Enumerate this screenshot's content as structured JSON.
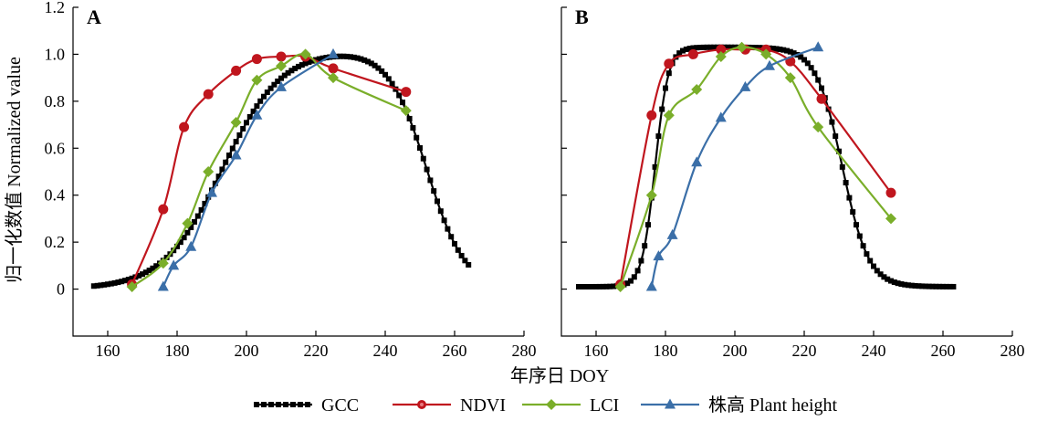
{
  "figure": {
    "y_axis_title": "归一化数值 Normalized value",
    "x_axis_title": "年序日 DOY"
  },
  "legend": [
    {
      "label": "GCC",
      "color": "#000000",
      "marker": "square-dot"
    },
    {
      "label": "NDVI",
      "color": "#c0161e",
      "marker": "circle"
    },
    {
      "label": "LCI",
      "color": "#7aae2a",
      "marker": "diamond"
    },
    {
      "label": "株高 Plant height",
      "color": "#3b6fa8",
      "marker": "triangle"
    }
  ],
  "chart_data": [
    {
      "type": "line",
      "panel": "A",
      "xlim": [
        150,
        280
      ],
      "ylim": [
        -0.2,
        1.2
      ],
      "x_ticks": [
        160,
        180,
        200,
        220,
        240,
        260,
        280
      ],
      "y_ticks": [
        0,
        0.2,
        0.4,
        0.6,
        0.8,
        1.0,
        1.2
      ],
      "y_tick_labels": [
        "0",
        "0.2",
        "0.4",
        "0.6",
        "0.8",
        "1.0",
        "1.2"
      ],
      "gcc_curve": {
        "start": 156,
        "end": 264,
        "rise_mid": 193,
        "rise_scale": 8.5,
        "fall_mid": 252,
        "fall_scale": 5.5,
        "min": 0.0,
        "max": 1.02
      },
      "series": [
        {
          "name": "NDVI",
          "x": [
            167,
            176,
            182,
            189,
            197,
            203,
            210,
            217,
            225,
            246
          ],
          "y": [
            0.02,
            0.34,
            0.69,
            0.83,
            0.93,
            0.98,
            0.99,
            0.99,
            0.94,
            0.84
          ]
        },
        {
          "name": "LCI",
          "x": [
            167,
            176,
            183,
            189,
            197,
            203,
            210,
            217,
            225,
            246
          ],
          "y": [
            0.01,
            0.11,
            0.28,
            0.5,
            0.71,
            0.89,
            0.95,
            1.0,
            0.9,
            0.76
          ]
        },
        {
          "name": "株高 Plant height",
          "x": [
            176,
            179,
            184,
            190,
            197,
            203,
            210,
            225
          ],
          "y": [
            0.01,
            0.1,
            0.18,
            0.41,
            0.57,
            0.74,
            0.86,
            1.0
          ]
        }
      ]
    },
    {
      "type": "line",
      "panel": "B",
      "xlim": [
        150,
        280
      ],
      "ylim": [
        -0.2,
        1.2
      ],
      "x_ticks": [
        160,
        180,
        200,
        220,
        240,
        260,
        280
      ],
      "y_ticks": [
        0,
        0.2,
        0.4,
        0.6,
        0.8,
        1.0,
        1.2
      ],
      "gcc_curve": {
        "start": 155,
        "end": 263,
        "rise_mid": 177,
        "rise_scale": 1.9,
        "fall_mid": 231,
        "fall_scale": 3.8,
        "min": 0.01,
        "max": 1.03
      },
      "series": [
        {
          "name": "NDVI",
          "x": [
            167,
            176,
            181,
            188,
            196,
            203,
            209,
            216,
            225,
            245
          ],
          "y": [
            0.02,
            0.74,
            0.96,
            1.0,
            1.02,
            1.02,
            1.02,
            0.97,
            0.81,
            0.41
          ]
        },
        {
          "name": "LCI",
          "x": [
            167,
            176,
            181,
            189,
            196,
            202,
            209,
            216,
            224,
            245
          ],
          "y": [
            0.01,
            0.4,
            0.74,
            0.85,
            0.99,
            1.03,
            1.0,
            0.9,
            0.69,
            0.3
          ]
        },
        {
          "name": "株高 Plant height",
          "x": [
            176,
            178,
            182,
            189,
            196,
            203,
            210,
            224
          ],
          "y": [
            0.01,
            0.14,
            0.23,
            0.54,
            0.73,
            0.86,
            0.95,
            1.03
          ]
        }
      ]
    }
  ]
}
